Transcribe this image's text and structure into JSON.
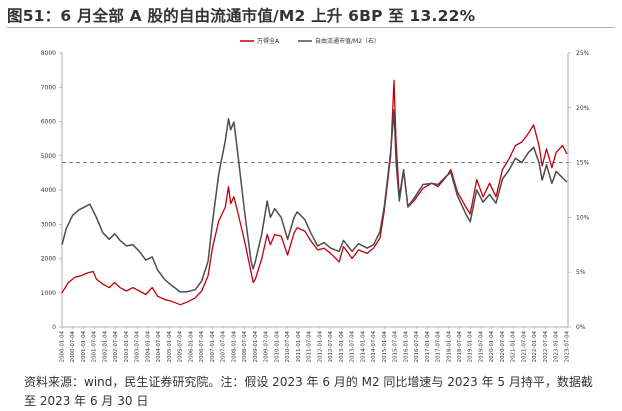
{
  "figure": {
    "title": "图51：6 月全部 A 股的自由流通市值/M2 上升 6BP 至 13.22%",
    "footnote": "资料来源：wind，民生证券研究院。注：假设 2023 年 6 月的 M2 同比增速与 2023 年 5 月持平，数据截至 2023 年 6 月 30 日"
  },
  "chart_data": {
    "type": "line",
    "title": "",
    "legend": [
      "万得全A",
      "自由流通市值/M2（右）"
    ],
    "legend_position": "top-right",
    "y_left": {
      "min": 0,
      "max": 8000,
      "ticks": [
        0,
        1000,
        2000,
        3000,
        4000,
        5000,
        6000,
        7000,
        8000
      ]
    },
    "y_right": {
      "min": 0,
      "max": 25,
      "unit": "%",
      "ticks": [
        "0%",
        "5%",
        "10%",
        "15%",
        "20%",
        "25%"
      ]
    },
    "x_ticks": [
      "2000-01-04",
      "2000-07-04",
      "2001-01-04",
      "2001-07-04",
      "2002-01-04",
      "2002-07-04",
      "2003-01-04",
      "2003-07-04",
      "2004-01-04",
      "2004-07-04",
      "2005-01-04",
      "2005-07-04",
      "2006-01-04",
      "2006-07-04",
      "2007-01-04",
      "2007-07-04",
      "2008-01-04",
      "2008-07-04",
      "2009-01-04",
      "2009-07-04",
      "2010-01-04",
      "2010-07-04",
      "2011-01-04",
      "2011-07-04",
      "2012-01-04",
      "2012-07-04",
      "2013-01-04",
      "2013-07-04",
      "2014-01-04",
      "2014-07-04",
      "2015-01-04",
      "2015-07-04",
      "2016-01-04",
      "2016-07-04",
      "2017-01-04",
      "2017-07-04",
      "2018-01-04",
      "2018-07-04",
      "2019-01-04",
      "2019-07-04",
      "2020-01-04",
      "2020-07-04",
      "2021-01-04",
      "2021-07-04",
      "2022-01-04",
      "2022-07-04",
      "2023-01-04",
      "2023-07-04"
    ],
    "reference_line": {
      "axis": "left",
      "value": 4800,
      "style": "dashed"
    },
    "series": [
      {
        "name": "万得全A",
        "axis": "left",
        "color": "#c0000b",
        "points": [
          [
            2000.0,
            1000
          ],
          [
            2000.3,
            1300
          ],
          [
            2000.6,
            1450
          ],
          [
            2000.9,
            1500
          ],
          [
            2001.2,
            1580
          ],
          [
            2001.45,
            1620
          ],
          [
            2001.6,
            1400
          ],
          [
            2001.9,
            1250
          ],
          [
            2002.2,
            1150
          ],
          [
            2002.45,
            1300
          ],
          [
            2002.7,
            1150
          ],
          [
            2003.0,
            1050
          ],
          [
            2003.3,
            1150
          ],
          [
            2003.6,
            1050
          ],
          [
            2003.9,
            950
          ],
          [
            2004.2,
            1150
          ],
          [
            2004.45,
            900
          ],
          [
            2004.8,
            800
          ],
          [
            2005.1,
            750
          ],
          [
            2005.5,
            650
          ],
          [
            2005.8,
            720
          ],
          [
            2006.2,
            850
          ],
          [
            2006.5,
            1050
          ],
          [
            2006.8,
            1500
          ],
          [
            2007.0,
            2300
          ],
          [
            2007.3,
            3100
          ],
          [
            2007.6,
            3500
          ],
          [
            2007.75,
            4100
          ],
          [
            2007.85,
            3600
          ],
          [
            2008.0,
            3800
          ],
          [
            2008.2,
            3300
          ],
          [
            2008.5,
            2500
          ],
          [
            2008.8,
            1600
          ],
          [
            2008.9,
            1300
          ],
          [
            2009.0,
            1400
          ],
          [
            2009.3,
            2000
          ],
          [
            2009.55,
            2700
          ],
          [
            2009.7,
            2400
          ],
          [
            2009.9,
            2700
          ],
          [
            2010.2,
            2650
          ],
          [
            2010.5,
            2100
          ],
          [
            2010.8,
            2750
          ],
          [
            2010.95,
            2900
          ],
          [
            2011.3,
            2800
          ],
          [
            2011.6,
            2500
          ],
          [
            2011.9,
            2250
          ],
          [
            2012.2,
            2300
          ],
          [
            2012.5,
            2150
          ],
          [
            2012.9,
            1900
          ],
          [
            2013.1,
            2350
          ],
          [
            2013.5,
            2000
          ],
          [
            2013.8,
            2250
          ],
          [
            2014.2,
            2150
          ],
          [
            2014.5,
            2300
          ],
          [
            2014.8,
            2600
          ],
          [
            2015.0,
            3400
          ],
          [
            2015.3,
            5000
          ],
          [
            2015.45,
            7200
          ],
          [
            2015.55,
            5400
          ],
          [
            2015.7,
            3800
          ],
          [
            2015.9,
            4600
          ],
          [
            2016.1,
            3500
          ],
          [
            2016.4,
            3700
          ],
          [
            2016.8,
            4050
          ],
          [
            2017.2,
            4200
          ],
          [
            2017.5,
            4100
          ],
          [
            2017.9,
            4400
          ],
          [
            2018.1,
            4600
          ],
          [
            2018.4,
            3950
          ],
          [
            2018.8,
            3500
          ],
          [
            2019.0,
            3300
          ],
          [
            2019.3,
            4300
          ],
          [
            2019.6,
            3800
          ],
          [
            2019.9,
            4200
          ],
          [
            2020.2,
            3800
          ],
          [
            2020.5,
            4600
          ],
          [
            2020.8,
            4900
          ],
          [
            2021.1,
            5300
          ],
          [
            2021.4,
            5400
          ],
          [
            2021.7,
            5650
          ],
          [
            2021.95,
            5900
          ],
          [
            2022.2,
            5300
          ],
          [
            2022.35,
            4700
          ],
          [
            2022.55,
            5200
          ],
          [
            2022.8,
            4650
          ],
          [
            2023.0,
            5100
          ],
          [
            2023.3,
            5300
          ],
          [
            2023.5,
            5050
          ]
        ]
      },
      {
        "name": "自由流通市值/M2（右）",
        "axis": "right",
        "color": "#4d4d4d",
        "points": [
          [
            2000.0,
            7.5
          ],
          [
            2000.2,
            9.0
          ],
          [
            2000.5,
            10.2
          ],
          [
            2000.8,
            10.7
          ],
          [
            2001.1,
            11.0
          ],
          [
            2001.3,
            11.2
          ],
          [
            2001.6,
            10.0
          ],
          [
            2001.9,
            8.6
          ],
          [
            2002.2,
            8.0
          ],
          [
            2002.45,
            8.5
          ],
          [
            2002.7,
            7.9
          ],
          [
            2003.0,
            7.4
          ],
          [
            2003.3,
            7.5
          ],
          [
            2003.6,
            6.9
          ],
          [
            2003.9,
            6.1
          ],
          [
            2004.2,
            6.4
          ],
          [
            2004.45,
            5.2
          ],
          [
            2004.8,
            4.3
          ],
          [
            2005.1,
            3.8
          ],
          [
            2005.5,
            3.2
          ],
          [
            2005.8,
            3.2
          ],
          [
            2006.2,
            3.4
          ],
          [
            2006.5,
            4.2
          ],
          [
            2006.8,
            6.0
          ],
          [
            2007.0,
            9.5
          ],
          [
            2007.3,
            14.0
          ],
          [
            2007.6,
            17.0
          ],
          [
            2007.75,
            19.0
          ],
          [
            2007.85,
            18.0
          ],
          [
            2008.0,
            18.7
          ],
          [
            2008.2,
            15.5
          ],
          [
            2008.5,
            10.5
          ],
          [
            2008.8,
            6.0
          ],
          [
            2008.9,
            5.3
          ],
          [
            2009.0,
            6.0
          ],
          [
            2009.3,
            8.5
          ],
          [
            2009.55,
            11.5
          ],
          [
            2009.7,
            10.0
          ],
          [
            2009.9,
            10.8
          ],
          [
            2010.2,
            10.0
          ],
          [
            2010.5,
            8.0
          ],
          [
            2010.8,
            10.0
          ],
          [
            2010.95,
            10.5
          ],
          [
            2011.3,
            9.8
          ],
          [
            2011.6,
            8.5
          ],
          [
            2011.9,
            7.4
          ],
          [
            2012.2,
            7.7
          ],
          [
            2012.5,
            7.2
          ],
          [
            2012.9,
            6.9
          ],
          [
            2013.1,
            7.9
          ],
          [
            2013.5,
            6.9
          ],
          [
            2013.8,
            7.6
          ],
          [
            2014.2,
            7.2
          ],
          [
            2014.5,
            7.5
          ],
          [
            2014.8,
            8.7
          ],
          [
            2015.0,
            11.0
          ],
          [
            2015.3,
            16.0
          ],
          [
            2015.45,
            19.8
          ],
          [
            2015.55,
            15.0
          ],
          [
            2015.7,
            11.5
          ],
          [
            2015.9,
            14.3
          ],
          [
            2016.1,
            11.0
          ],
          [
            2016.4,
            11.8
          ],
          [
            2016.8,
            13.0
          ],
          [
            2017.2,
            13.1
          ],
          [
            2017.5,
            13.0
          ],
          [
            2017.9,
            13.8
          ],
          [
            2018.1,
            14.1
          ],
          [
            2018.4,
            12.0
          ],
          [
            2018.8,
            10.3
          ],
          [
            2019.0,
            9.6
          ],
          [
            2019.3,
            12.5
          ],
          [
            2019.6,
            11.4
          ],
          [
            2019.9,
            12.1
          ],
          [
            2020.2,
            11.3
          ],
          [
            2020.5,
            13.5
          ],
          [
            2020.8,
            14.3
          ],
          [
            2021.1,
            15.4
          ],
          [
            2021.4,
            15.0
          ],
          [
            2021.7,
            15.9
          ],
          [
            2021.95,
            16.4
          ],
          [
            2022.2,
            15.0
          ],
          [
            2022.35,
            13.4
          ],
          [
            2022.55,
            14.8
          ],
          [
            2022.8,
            13.1
          ],
          [
            2023.0,
            14.2
          ],
          [
            2023.3,
            13.6
          ],
          [
            2023.5,
            13.22
          ]
        ]
      }
    ]
  }
}
